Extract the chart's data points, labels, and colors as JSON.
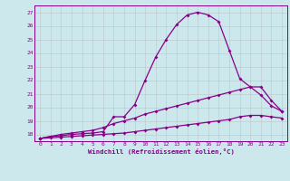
{
  "title": "",
  "xlabel": "Windchill (Refroidissement éolien,°C)",
  "background_color": "#cce8ec",
  "grid_color": "#b0b0b0",
  "line_color": "#880088",
  "xlim": [
    -0.5,
    23.5
  ],
  "ylim": [
    17.5,
    27.5
  ],
  "xticks": [
    0,
    1,
    2,
    3,
    4,
    5,
    6,
    7,
    8,
    9,
    10,
    11,
    12,
    13,
    14,
    15,
    16,
    17,
    18,
    19,
    20,
    21,
    22,
    23
  ],
  "yticks": [
    18,
    19,
    20,
    21,
    22,
    23,
    24,
    25,
    26,
    27
  ],
  "line1_x": [
    0,
    1,
    2,
    3,
    4,
    5,
    6,
    7,
    8,
    9,
    10,
    11,
    12,
    13,
    14,
    15,
    16,
    17,
    18,
    19,
    20,
    21,
    22,
    23
  ],
  "line1_y": [
    17.7,
    17.85,
    17.9,
    18.0,
    18.05,
    18.1,
    18.2,
    19.3,
    19.3,
    20.2,
    22.0,
    23.7,
    25.0,
    26.1,
    26.8,
    27.0,
    26.8,
    26.3,
    24.2,
    22.1,
    21.5,
    20.9,
    20.1,
    19.7
  ],
  "line2_x": [
    0,
    1,
    2,
    3,
    4,
    5,
    6,
    7,
    8,
    9,
    10,
    11,
    12,
    13,
    14,
    15,
    16,
    17,
    18,
    19,
    20,
    21,
    22,
    23
  ],
  "line2_y": [
    17.7,
    17.85,
    18.0,
    18.1,
    18.2,
    18.3,
    18.5,
    18.8,
    19.0,
    19.2,
    19.5,
    19.7,
    19.9,
    20.1,
    20.3,
    20.5,
    20.7,
    20.9,
    21.1,
    21.3,
    21.5,
    21.5,
    20.5,
    19.7
  ],
  "line3_x": [
    0,
    1,
    2,
    3,
    4,
    5,
    6,
    7,
    8,
    9,
    10,
    11,
    12,
    13,
    14,
    15,
    16,
    17,
    18,
    19,
    20,
    21,
    22,
    23
  ],
  "line3_y": [
    17.7,
    17.75,
    17.8,
    17.85,
    17.9,
    17.95,
    18.0,
    18.05,
    18.1,
    18.2,
    18.3,
    18.4,
    18.5,
    18.6,
    18.7,
    18.8,
    18.9,
    19.0,
    19.1,
    19.3,
    19.4,
    19.4,
    19.3,
    19.2
  ]
}
